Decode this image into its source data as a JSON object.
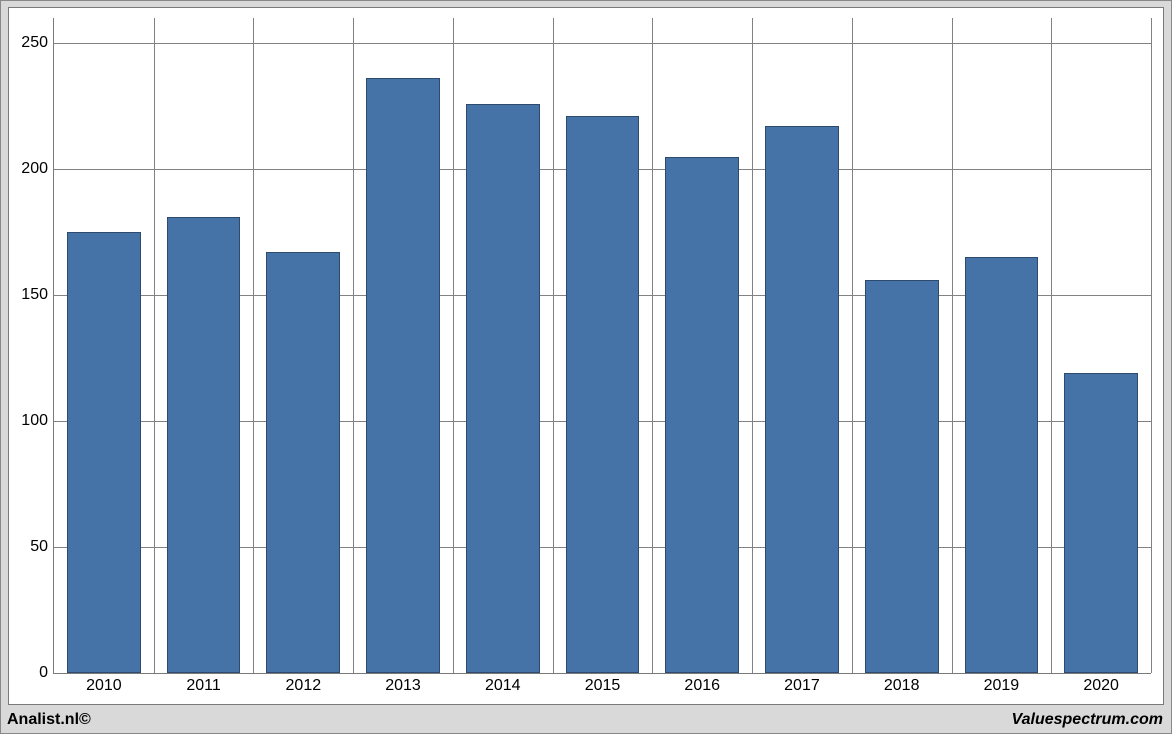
{
  "chart": {
    "type": "bar",
    "categories": [
      "2010",
      "2011",
      "2012",
      "2013",
      "2014",
      "2015",
      "2016",
      "2017",
      "2018",
      "2019",
      "2020"
    ],
    "values": [
      175,
      181,
      167,
      236,
      226,
      221,
      205,
      217,
      156,
      165,
      119
    ],
    "bar_color": "#4573a7",
    "bar_border_color": "#2e4a6d",
    "background_color": "#ffffff",
    "outer_background_color": "#d9d9d9",
    "grid_color": "#828282",
    "axis_color": "#7a7a7a",
    "label_color": "#000000",
    "label_fontsize": 16,
    "ylim": [
      0,
      260
    ],
    "yticks": [
      0,
      50,
      100,
      150,
      200,
      250
    ],
    "bar_width_ratio": 0.74,
    "vgrid": true
  },
  "footer": {
    "left": "Analist.nl©",
    "right": "Valuespectrum.com"
  }
}
